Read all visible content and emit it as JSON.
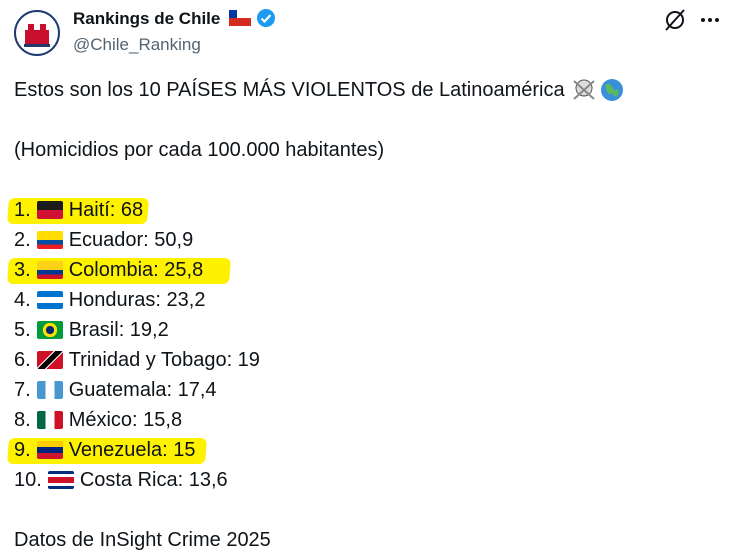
{
  "header": {
    "name": "Rankings de Chile",
    "handle": "@Chile_Ranking"
  },
  "body": {
    "intro": "Estos son los 10 PAÍSES MÁS VIOLENTOS de Latinoamérica",
    "subtitle": "(Homicidios por cada 100.000 habitantes)",
    "list": [
      {
        "rank": "1.",
        "text": "Haití: 68"
      },
      {
        "rank": "2.",
        "text": "Ecuador: 50,9"
      },
      {
        "rank": "3.",
        "text": "Colombia: 25,8"
      },
      {
        "rank": "4.",
        "text": "Honduras: 23,2"
      },
      {
        "rank": "5.",
        "text": "Brasil: 19,2"
      },
      {
        "rank": "6.",
        "text": "Trinidad y Tobago: 19"
      },
      {
        "rank": "7.",
        "text": "Guatemala: 17,4"
      },
      {
        "rank": "8.",
        "text": "México: 15,8"
      },
      {
        "rank": "9.",
        "text": "Venezuela: 15"
      },
      {
        "rank": "10.",
        "text": "Costa Rica: 13,6"
      }
    ],
    "source": "Datos de InSight Crime 2025"
  }
}
